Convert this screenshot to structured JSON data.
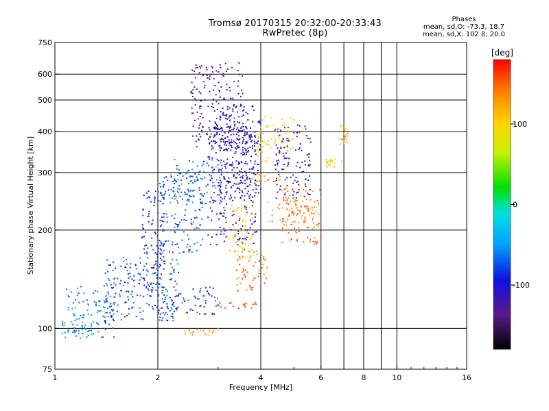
{
  "window": {
    "title_line1": "Tromsø 20170315 20:32:00-20:33:43",
    "title_line2": "RwPretec (8p)"
  },
  "stats": {
    "heading": "Phases",
    "line_o": "mean, sd,O: -73.3, 18.7",
    "line_x": "mean, sd,X: 102.8, 20.0"
  },
  "colorbar": {
    "unit_label": "[deg]",
    "ticks": [
      "100",
      "0",
      "-100"
    ],
    "tick_values": [
      100,
      0,
      -100
    ],
    "range": [
      -180,
      180
    ]
  },
  "chart_data": {
    "type": "scatter",
    "xlabel": "Frequency [MHz]",
    "ylabel": "Stationary phase Virtual Height [km]",
    "xscale": "log",
    "yscale": "log",
    "xlim": [
      1,
      16
    ],
    "ylim": [
      75,
      750
    ],
    "x_ticks": [
      1,
      2,
      4,
      6,
      8,
      10,
      16
    ],
    "x_tick_labels": [
      "1",
      "2",
      "4",
      "6",
      "8",
      "10",
      "16"
    ],
    "y_ticks": [
      75,
      100,
      200,
      300,
      400,
      500,
      600,
      750
    ],
    "y_tick_labels": [
      "75",
      "100",
      "200",
      "300",
      "400",
      "500",
      "600",
      "750"
    ],
    "grid": true,
    "color_encodes": "phase [deg]",
    "clusters": [
      {
        "x": [
          1.05,
          1.5
        ],
        "y": [
          93,
          135
        ],
        "phase": -60
      },
      {
        "x": [
          1.4,
          2.3
        ],
        "y": [
          105,
          165
        ],
        "phase": -75
      },
      {
        "x": [
          1.8,
          2.1
        ],
        "y": [
          130,
          270
        ],
        "phase": -90
      },
      {
        "x": [
          2.0,
          2.7
        ],
        "y": [
          170,
          300
        ],
        "phase": -70
      },
      {
        "x": [
          2.2,
          3.2
        ],
        "y": [
          240,
          330
        ],
        "phase": -65
      },
      {
        "x": [
          2.8,
          3.9
        ],
        "y": [
          180,
          420
        ],
        "phase": -105
      },
      {
        "x": [
          2.5,
          3.6
        ],
        "y": [
          350,
          650
        ],
        "phase": -120
      },
      {
        "x": [
          3.0,
          4.0
        ],
        "y": [
          250,
          480
        ],
        "phase": -100
      },
      {
        "x": [
          2.0,
          3.0
        ],
        "y": [
          110,
          135
        ],
        "phase": -80
      },
      {
        "x": [
          2.4,
          3.0
        ],
        "y": [
          95,
          100
        ],
        "phase": 125
      },
      {
        "x": [
          3.0,
          3.9
        ],
        "y": [
          115,
          120
        ],
        "phase": 160
      },
      {
        "x": [
          3.4,
          4.2
        ],
        "y": [
          130,
          175
        ],
        "phase": 150
      },
      {
        "x": [
          3.6,
          4.6
        ],
        "y": [
          280,
          300
        ],
        "phase": 140
      },
      {
        "x": [
          4.2,
          5.8
        ],
        "y": [
          210,
          250
        ],
        "phase": 130
      },
      {
        "x": [
          4.6,
          6.0
        ],
        "y": [
          180,
          270
        ],
        "phase": 145
      },
      {
        "x": [
          3.9,
          5.0
        ],
        "y": [
          320,
          450
        ],
        "phase": 100
      },
      {
        "x": [
          4.4,
          5.6
        ],
        "y": [
          250,
          420
        ],
        "phase": -110
      },
      {
        "x": [
          6.2,
          6.9
        ],
        "y": [
          310,
          330
        ],
        "phase": 110
      },
      {
        "x": [
          6.8,
          7.2
        ],
        "y": [
          360,
          420
        ],
        "phase": 120
      },
      {
        "x": [
          3.2,
          3.8
        ],
        "y": [
          160,
          240
        ],
        "phase": 95
      },
      {
        "x": [
          1.05,
          1.3
        ],
        "y": [
          95,
          105
        ],
        "phase": -55
      }
    ]
  }
}
